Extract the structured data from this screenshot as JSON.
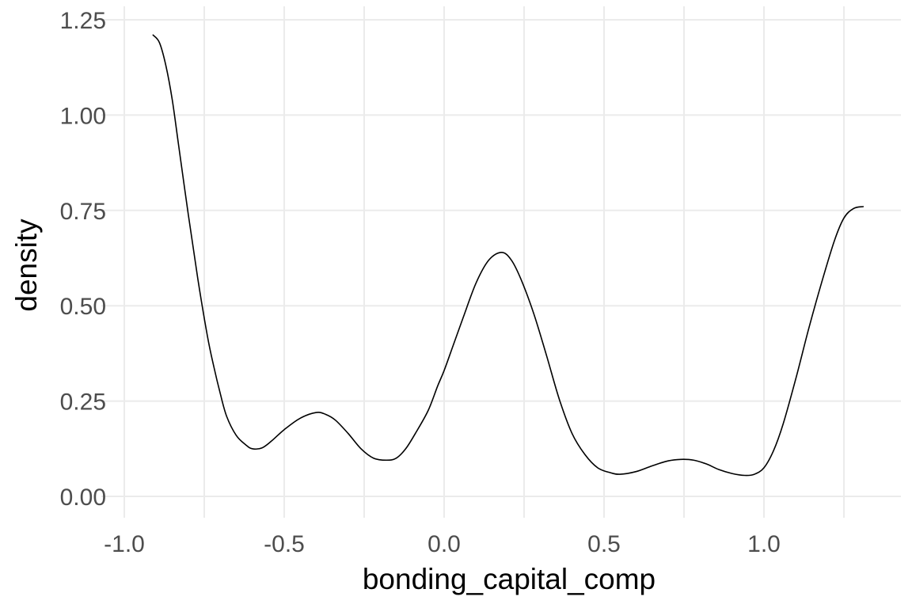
{
  "chart_data": {
    "type": "line",
    "title": "",
    "xlabel": "bonding_capital_comp",
    "ylabel": "density",
    "xlim": [
      -1.0,
      1.35
    ],
    "ylim": [
      -0.05,
      1.25
    ],
    "grid": true,
    "legend": "none",
    "x_ticks": [
      -1.0,
      -0.5,
      0.0,
      0.5,
      1.0
    ],
    "x_tick_labels": [
      "-1.0",
      "-0.5",
      "0.0",
      "0.5",
      "1.0"
    ],
    "y_ticks": [
      0.0,
      0.25,
      0.5,
      0.75,
      1.0,
      1.25
    ],
    "y_tick_labels": [
      "0.00",
      "0.25",
      "0.50",
      "0.75",
      "1.00",
      "1.25"
    ],
    "colors": {
      "line": "#000000",
      "grid": "#ebebeb",
      "tick_text": "#4d4d4d",
      "background": "#ffffff"
    },
    "series": [
      {
        "x": [
          -0.91,
          -0.89,
          -0.87,
          -0.85,
          -0.83,
          -0.8,
          -0.77,
          -0.74,
          -0.72,
          -0.7,
          -0.68,
          -0.65,
          -0.62,
          -0.6,
          -0.57,
          -0.54,
          -0.5,
          -0.45,
          -0.4,
          -0.37,
          -0.34,
          -0.3,
          -0.26,
          -0.22,
          -0.18,
          -0.15,
          -0.12,
          -0.09,
          -0.05,
          -0.02,
          0.0,
          0.03,
          0.06,
          0.1,
          0.14,
          0.18,
          0.21,
          0.24,
          0.28,
          0.32,
          0.36,
          0.4,
          0.44,
          0.48,
          0.52,
          0.55,
          0.6,
          0.65,
          0.7,
          0.74,
          0.78,
          0.82,
          0.86,
          0.9,
          0.94,
          0.97,
          1.0,
          1.03,
          1.06,
          1.1,
          1.14,
          1.18,
          1.22,
          1.25,
          1.28,
          1.31
        ],
        "y": [
          1.21,
          1.19,
          1.13,
          1.04,
          0.92,
          0.74,
          0.57,
          0.42,
          0.34,
          0.27,
          0.21,
          0.16,
          0.135,
          0.125,
          0.127,
          0.145,
          0.175,
          0.205,
          0.22,
          0.215,
          0.2,
          0.165,
          0.125,
          0.1,
          0.095,
          0.1,
          0.125,
          0.165,
          0.225,
          0.29,
          0.33,
          0.4,
          0.47,
          0.56,
          0.62,
          0.64,
          0.62,
          0.57,
          0.48,
          0.37,
          0.255,
          0.165,
          0.11,
          0.075,
          0.062,
          0.058,
          0.065,
          0.08,
          0.093,
          0.097,
          0.095,
          0.085,
          0.07,
          0.06,
          0.055,
          0.058,
          0.075,
          0.12,
          0.19,
          0.31,
          0.44,
          0.56,
          0.67,
          0.73,
          0.755,
          0.76
        ]
      }
    ]
  }
}
